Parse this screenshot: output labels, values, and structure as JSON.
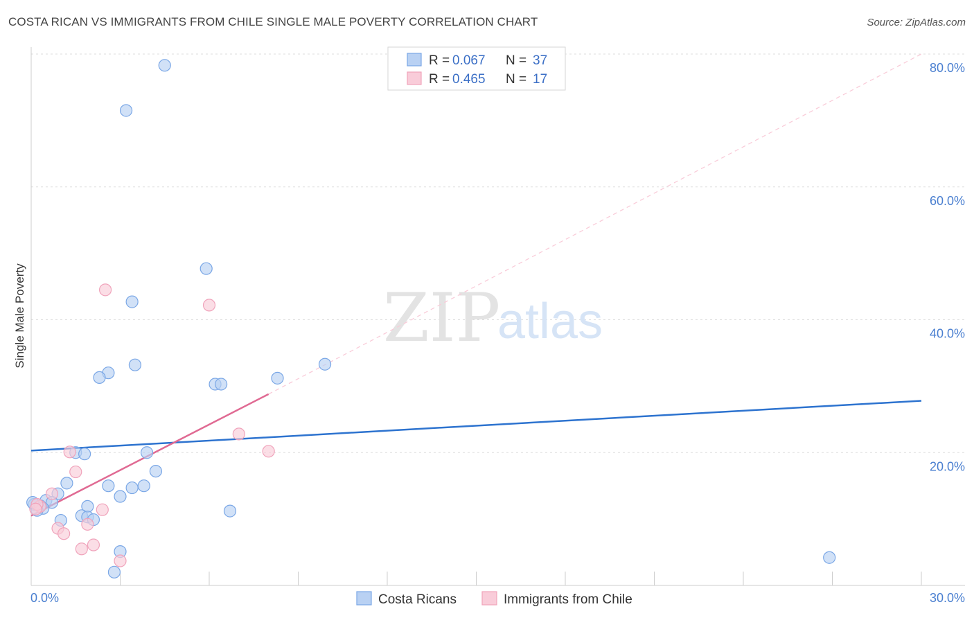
{
  "chart_data": {
    "type": "scatter",
    "title": "COSTA RICAN VS IMMIGRANTS FROM CHILE SINGLE MALE POVERTY CORRELATION CHART",
    "source": "Source: ZipAtlas.com",
    "xlabel": "",
    "ylabel": "Single Male Poverty",
    "xlim": [
      0,
      30
    ],
    "ylim": [
      0,
      80
    ],
    "x_tick_labels": [
      "0.0%",
      "30.0%"
    ],
    "y_ticks": [
      20,
      40,
      60,
      80
    ],
    "y_tick_labels": [
      "20.0%",
      "40.0%",
      "60.0%",
      "80.0%"
    ],
    "legend": {
      "entries": [
        {
          "r_label": "R =",
          "r_value": "0.067",
          "n_label": "N =",
          "n_value": "37"
        },
        {
          "r_label": "R =",
          "r_value": "0.465",
          "n_label": "N =",
          "n_value": "17"
        }
      ]
    },
    "series": [
      {
        "name": "Costa Ricans",
        "color": "#7aa7e6",
        "fill": "#b9d1f3",
        "line_color": "#2d73cf",
        "trend": {
          "x": [
            0,
            30
          ],
          "y": [
            20.3,
            27.8
          ],
          "dashed_extension": false
        },
        "points": [
          {
            "x": 4.5,
            "y": 78.3
          },
          {
            "x": 3.2,
            "y": 71.5
          },
          {
            "x": 5.9,
            "y": 47.7
          },
          {
            "x": 3.4,
            "y": 42.7
          },
          {
            "x": 3.5,
            "y": 33.2
          },
          {
            "x": 2.6,
            "y": 32.0
          },
          {
            "x": 2.3,
            "y": 31.3
          },
          {
            "x": 6.2,
            "y": 30.3
          },
          {
            "x": 6.4,
            "y": 30.3
          },
          {
            "x": 8.3,
            "y": 31.2
          },
          {
            "x": 9.9,
            "y": 33.3
          },
          {
            "x": 1.5,
            "y": 20.0
          },
          {
            "x": 1.8,
            "y": 19.8
          },
          {
            "x": 3.9,
            "y": 20.0
          },
          {
            "x": 4.2,
            "y": 17.2
          },
          {
            "x": 1.2,
            "y": 15.4
          },
          {
            "x": 2.6,
            "y": 15.0
          },
          {
            "x": 3.4,
            "y": 14.7
          },
          {
            "x": 3.8,
            "y": 15.0
          },
          {
            "x": 3.0,
            "y": 13.4
          },
          {
            "x": 0.9,
            "y": 13.8
          },
          {
            "x": 0.5,
            "y": 12.8
          },
          {
            "x": 0.7,
            "y": 12.5
          },
          {
            "x": 0.3,
            "y": 12.0
          },
          {
            "x": 0.4,
            "y": 11.6
          },
          {
            "x": 0.1,
            "y": 12.2
          },
          {
            "x": 0.2,
            "y": 11.3
          },
          {
            "x": 1.9,
            "y": 11.9
          },
          {
            "x": 1.7,
            "y": 10.5
          },
          {
            "x": 1.9,
            "y": 10.3
          },
          {
            "x": 2.1,
            "y": 9.9
          },
          {
            "x": 1.0,
            "y": 9.8
          },
          {
            "x": 6.7,
            "y": 11.2
          },
          {
            "x": 3.0,
            "y": 5.1
          },
          {
            "x": 2.8,
            "y": 2.0
          },
          {
            "x": 26.9,
            "y": 4.2
          },
          {
            "x": 0.05,
            "y": 12.5
          }
        ]
      },
      {
        "name": "Immigrants from Chile",
        "color": "#f0a3bb",
        "fill": "#f9ccd9",
        "line_color": "#e06a93",
        "trend": {
          "x": [
            0,
            8.0
          ],
          "y": [
            10.5,
            28.8
          ],
          "dash_x": [
            8.0,
            30
          ],
          "dash_y": [
            28.8,
            80.0
          ]
        },
        "points": [
          {
            "x": 2.5,
            "y": 44.5
          },
          {
            "x": 6.0,
            "y": 42.2
          },
          {
            "x": 7.0,
            "y": 22.8
          },
          {
            "x": 8.0,
            "y": 20.2
          },
          {
            "x": 1.3,
            "y": 20.1
          },
          {
            "x": 1.5,
            "y": 17.1
          },
          {
            "x": 0.7,
            "y": 13.8
          },
          {
            "x": 2.4,
            "y": 11.4
          },
          {
            "x": 1.9,
            "y": 9.2
          },
          {
            "x": 0.9,
            "y": 8.6
          },
          {
            "x": 1.1,
            "y": 7.8
          },
          {
            "x": 2.1,
            "y": 6.1
          },
          {
            "x": 1.7,
            "y": 5.5
          },
          {
            "x": 3.0,
            "y": 3.7
          },
          {
            "x": 0.3,
            "y": 11.9
          },
          {
            "x": 0.2,
            "y": 12.2
          },
          {
            "x": 0.15,
            "y": 11.5
          }
        ]
      }
    ]
  }
}
